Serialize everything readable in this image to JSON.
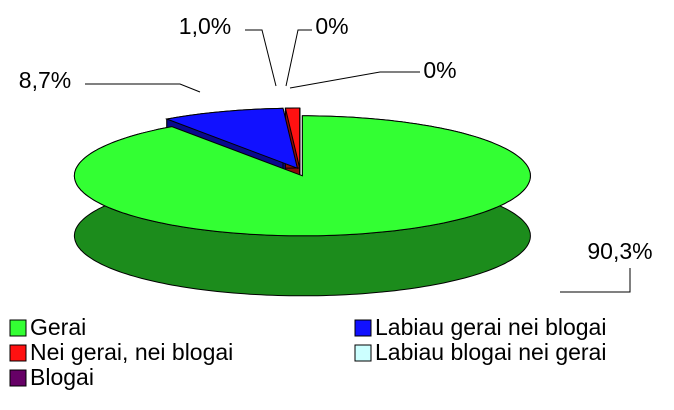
{
  "chart_data": {
    "type": "pie",
    "categories": [
      "Gerai",
      "Labiau gerai nei blogai",
      "Nei gerai, nei blogai",
      "Labiau blogai nei gerai",
      "Blogai"
    ],
    "values": [
      90.3,
      8.7,
      1.0,
      0,
      0
    ],
    "value_labels": [
      "90,3%",
      "8,7%",
      "1,0%",
      "0%",
      "0%"
    ],
    "colors": [
      "#33ff33",
      "#1111ff",
      "#ff1111",
      "#ccffff",
      "#660066"
    ],
    "legend": "bottom"
  }
}
